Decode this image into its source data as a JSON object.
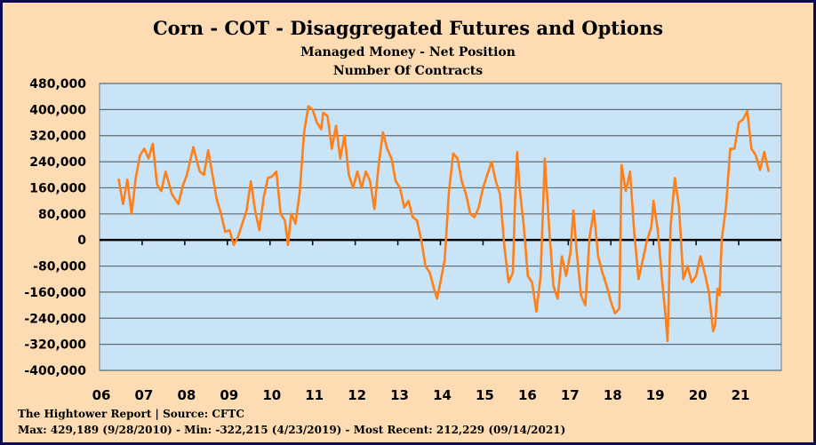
{
  "title": "Corn - COT - Disaggregated  Futures and Options",
  "subtitle1": "Managed Money - Net Position",
  "subtitle2": "Number Of Contracts",
  "footer_source": "The Hightower Report | Source: CFTC",
  "footer_stats": "Max: 429,189 (9/28/2010)  -  Min: -322,215 (4/23/2019) - Most Recent: 212,229 (09/14/2021)",
  "colors": {
    "background": "#fddcb3",
    "plot_area": "#c9e4f7",
    "line": "#ff7f19",
    "gridline": "#5f6b73",
    "border": "#0b0b55"
  },
  "chart_data": {
    "type": "line",
    "title": "Corn - COT - Disaggregated  Futures and Options",
    "ylabel": "",
    "xlabel": "",
    "ylim": [
      -400000,
      480000
    ],
    "yticks": [
      480000,
      400000,
      320000,
      240000,
      160000,
      80000,
      0,
      -80000,
      -160000,
      -240000,
      -320000,
      -400000
    ],
    "ytick_labels": [
      "480,000",
      "400,000",
      "320,000",
      "240,000",
      "160,000",
      "80,000",
      "0",
      "-80,000",
      "-160,000",
      "-240,000",
      "-320,000",
      "-400,000"
    ],
    "xlim": [
      2006,
      2022
    ],
    "xticks": [
      2006,
      2007,
      2008,
      2009,
      2010,
      2011,
      2012,
      2013,
      2014,
      2015,
      2016,
      2017,
      2018,
      2019,
      2020,
      2021
    ],
    "xtick_labels": [
      "06",
      "07",
      "08",
      "09",
      "10",
      "11",
      "12",
      "13",
      "14",
      "15",
      "16",
      "17",
      "18",
      "19",
      "20",
      "21"
    ],
    "grid": true,
    "legend": "none",
    "series": [
      {
        "values": [
          [
            2006.45,
            185000
          ],
          [
            2006.55,
            110000
          ],
          [
            2006.65,
            185000
          ],
          [
            2006.75,
            80000
          ],
          [
            2006.85,
            190000
          ],
          [
            2006.95,
            260000
          ],
          [
            2007.05,
            280000
          ],
          [
            2007.15,
            250000
          ],
          [
            2007.25,
            295000
          ],
          [
            2007.35,
            170000
          ],
          [
            2007.45,
            150000
          ],
          [
            2007.55,
            210000
          ],
          [
            2007.7,
            140000
          ],
          [
            2007.85,
            110000
          ],
          [
            2007.95,
            165000
          ],
          [
            2008.05,
            200000
          ],
          [
            2008.2,
            285000
          ],
          [
            2008.35,
            210000
          ],
          [
            2008.45,
            200000
          ],
          [
            2008.55,
            275000
          ],
          [
            2008.65,
            200000
          ],
          [
            2008.75,
            125000
          ],
          [
            2008.85,
            80000
          ],
          [
            2008.95,
            25000
          ],
          [
            2009.05,
            30000
          ],
          [
            2009.15,
            -15000
          ],
          [
            2009.25,
            10000
          ],
          [
            2009.35,
            50000
          ],
          [
            2009.45,
            90000
          ],
          [
            2009.55,
            180000
          ],
          [
            2009.65,
            90000
          ],
          [
            2009.75,
            30000
          ],
          [
            2009.85,
            130000
          ],
          [
            2009.95,
            190000
          ],
          [
            2010.05,
            195000
          ],
          [
            2010.15,
            210000
          ],
          [
            2010.25,
            80000
          ],
          [
            2010.35,
            60000
          ],
          [
            2010.42,
            -15000
          ],
          [
            2010.5,
            80000
          ],
          [
            2010.6,
            50000
          ],
          [
            2010.7,
            150000
          ],
          [
            2010.8,
            330000
          ],
          [
            2010.9,
            410000
          ],
          [
            2011.0,
            400000
          ],
          [
            2011.1,
            360000
          ],
          [
            2011.2,
            340000
          ],
          [
            2011.25,
            390000
          ],
          [
            2011.35,
            380000
          ],
          [
            2011.45,
            280000
          ],
          [
            2011.55,
            350000
          ],
          [
            2011.65,
            250000
          ],
          [
            2011.75,
            320000
          ],
          [
            2011.85,
            200000
          ],
          [
            2011.95,
            160000
          ],
          [
            2012.05,
            210000
          ],
          [
            2012.15,
            160000
          ],
          [
            2012.25,
            210000
          ],
          [
            2012.35,
            180000
          ],
          [
            2012.45,
            95000
          ],
          [
            2012.55,
            230000
          ],
          [
            2012.65,
            330000
          ],
          [
            2012.75,
            280000
          ],
          [
            2012.85,
            250000
          ],
          [
            2012.95,
            180000
          ],
          [
            2013.05,
            160000
          ],
          [
            2013.15,
            100000
          ],
          [
            2013.25,
            120000
          ],
          [
            2013.35,
            70000
          ],
          [
            2013.45,
            60000
          ],
          [
            2013.55,
            0
          ],
          [
            2013.65,
            -80000
          ],
          [
            2013.75,
            -100000
          ],
          [
            2013.85,
            -150000
          ],
          [
            2013.92,
            -180000
          ],
          [
            2014.0,
            -130000
          ],
          [
            2014.1,
            -60000
          ],
          [
            2014.2,
            150000
          ],
          [
            2014.3,
            265000
          ],
          [
            2014.4,
            250000
          ],
          [
            2014.5,
            180000
          ],
          [
            2014.6,
            140000
          ],
          [
            2014.7,
            80000
          ],
          [
            2014.8,
            70000
          ],
          [
            2014.9,
            100000
          ],
          [
            2015.0,
            160000
          ],
          [
            2015.1,
            200000
          ],
          [
            2015.2,
            240000
          ],
          [
            2015.3,
            180000
          ],
          [
            2015.4,
            140000
          ],
          [
            2015.5,
            -20000
          ],
          [
            2015.6,
            -130000
          ],
          [
            2015.7,
            -100000
          ],
          [
            2015.75,
            120000
          ],
          [
            2015.8,
            270000
          ],
          [
            2015.85,
            170000
          ],
          [
            2015.95,
            50000
          ],
          [
            2016.05,
            -110000
          ],
          [
            2016.15,
            -130000
          ],
          [
            2016.25,
            -220000
          ],
          [
            2016.35,
            -110000
          ],
          [
            2016.45,
            250000
          ],
          [
            2016.55,
            40000
          ],
          [
            2016.65,
            -140000
          ],
          [
            2016.75,
            -180000
          ],
          [
            2016.85,
            -50000
          ],
          [
            2016.95,
            -110000
          ],
          [
            2017.05,
            -40000
          ],
          [
            2017.12,
            90000
          ],
          [
            2017.2,
            -40000
          ],
          [
            2017.3,
            -170000
          ],
          [
            2017.4,
            -200000
          ],
          [
            2017.5,
            10000
          ],
          [
            2017.6,
            90000
          ],
          [
            2017.7,
            -50000
          ],
          [
            2017.8,
            -100000
          ],
          [
            2017.9,
            -140000
          ],
          [
            2018.0,
            -190000
          ],
          [
            2018.1,
            -225000
          ],
          [
            2018.2,
            -210000
          ],
          [
            2018.25,
            230000
          ],
          [
            2018.35,
            150000
          ],
          [
            2018.45,
            210000
          ],
          [
            2018.55,
            20000
          ],
          [
            2018.65,
            -120000
          ],
          [
            2018.75,
            -60000
          ],
          [
            2018.85,
            0
          ],
          [
            2018.95,
            40000
          ],
          [
            2019.0,
            120000
          ],
          [
            2019.1,
            30000
          ],
          [
            2019.2,
            -120000
          ],
          [
            2019.28,
            -230000
          ],
          [
            2019.33,
            -310000
          ],
          [
            2019.4,
            40000
          ],
          [
            2019.5,
            190000
          ],
          [
            2019.6,
            100000
          ],
          [
            2019.7,
            -120000
          ],
          [
            2019.8,
            -80000
          ],
          [
            2019.9,
            -130000
          ],
          [
            2020.0,
            -110000
          ],
          [
            2020.1,
            -50000
          ],
          [
            2020.2,
            -100000
          ],
          [
            2020.3,
            -160000
          ],
          [
            2020.4,
            -280000
          ],
          [
            2020.45,
            -260000
          ],
          [
            2020.5,
            -150000
          ],
          [
            2020.55,
            -170000
          ],
          [
            2020.6,
            0
          ],
          [
            2020.7,
            100000
          ],
          [
            2020.8,
            280000
          ],
          [
            2020.9,
            280000
          ],
          [
            2021.0,
            360000
          ],
          [
            2021.1,
            370000
          ],
          [
            2021.2,
            395000
          ],
          [
            2021.3,
            280000
          ],
          [
            2021.4,
            260000
          ],
          [
            2021.5,
            215000
          ],
          [
            2021.6,
            270000
          ],
          [
            2021.7,
            212229
          ]
        ]
      }
    ]
  }
}
